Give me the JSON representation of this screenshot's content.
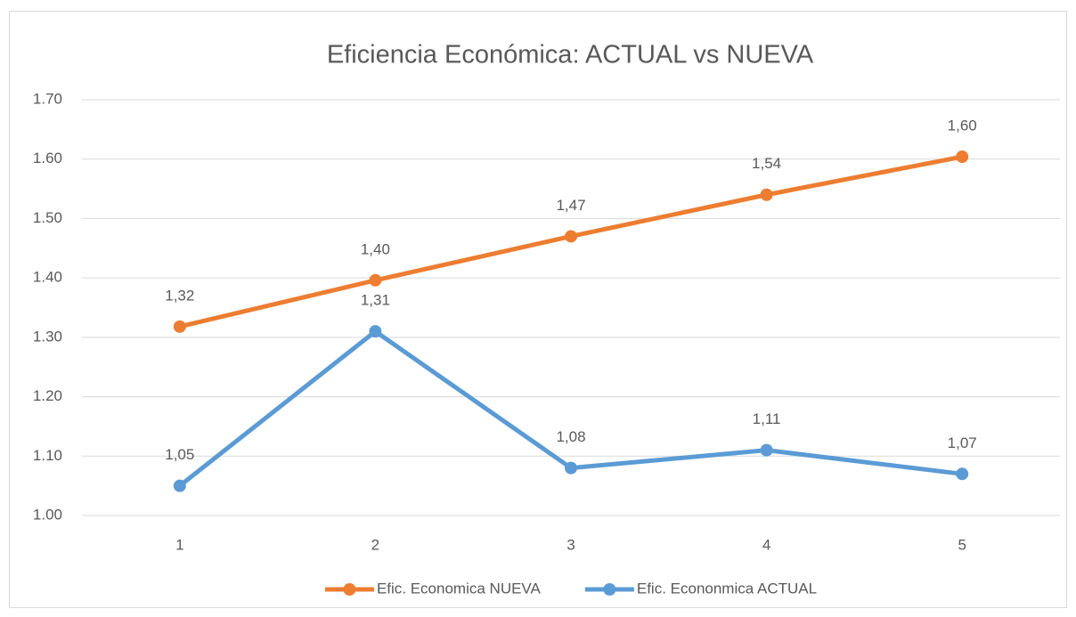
{
  "chart_data": {
    "type": "line",
    "title": "Eficiencia Económica: ACTUAL vs NUEVA",
    "categories": [
      "1",
      "2",
      "3",
      "4",
      "5"
    ],
    "series": [
      {
        "name": "Efic. Economica NUEVA",
        "color": "#ed7d31",
        "values": [
          1.318,
          1.396,
          1.47,
          1.54,
          1.604
        ],
        "value_labels": [
          "1,32",
          "1,40",
          "1,47",
          "1,54",
          "1,60"
        ]
      },
      {
        "name": "Efic. Econonmica ACTUAL",
        "color": "#5b9bd5",
        "values": [
          1.05,
          1.31,
          1.08,
          1.11,
          1.07
        ],
        "value_labels": [
          "1,05",
          "1,31",
          "1,08",
          "1,11",
          "1,07"
        ]
      }
    ],
    "ylim": [
      1.0,
      1.7
    ],
    "yticks": [
      {
        "value": 1.0,
        "label": "1.00"
      },
      {
        "value": 1.1,
        "label": "1.10"
      },
      {
        "value": 1.2,
        "label": "1.20"
      },
      {
        "value": 1.3,
        "label": "1.30"
      },
      {
        "value": 1.4,
        "label": "1.40"
      },
      {
        "value": 1.5,
        "label": "1.50"
      },
      {
        "value": 1.6,
        "label": "1.60"
      },
      {
        "value": 1.7,
        "label": "1.70"
      }
    ],
    "grid": true,
    "legend": "bottom"
  }
}
